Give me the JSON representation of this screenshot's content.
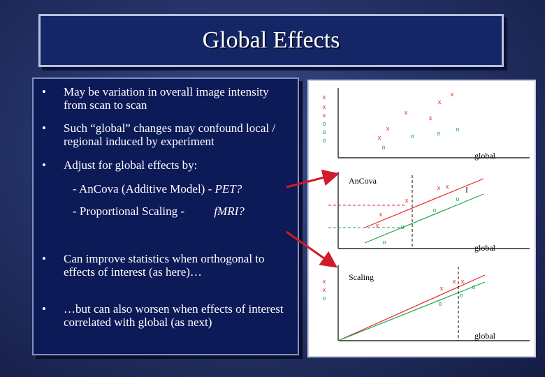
{
  "slide": {
    "title": "Global Effects",
    "bullets": [
      {
        "marker": "•",
        "text": "May be variation in overall image intensity from scan to scan"
      },
      {
        "marker": "•",
        "text": "Such “global” changes may confound local / regional induced by experiment"
      },
      {
        "marker": "•",
        "text": "Adjust for global effects by:"
      }
    ],
    "sub_items": {
      "ancova": {
        "prefix": "- AnCova (Additive Model) - ",
        "emph": "PET?"
      },
      "scaling": {
        "prefix": "- Proportional Scaling - ",
        "emph": "fMRI?"
      }
    },
    "bullets_lower": [
      {
        "marker": "•",
        "text": "Can improve statistics when orthogonal to effects of interest (as here)…"
      },
      {
        "marker": "•",
        "text": "…but can also worsen when effects of interest correlated with global (as next)"
      }
    ]
  },
  "figure": {
    "panel1": {
      "x_label": "global"
    },
    "panel2": {
      "title": "AnCova",
      "x_label": "global"
    },
    "panel3": {
      "title": "Scaling",
      "x_label": "global"
    },
    "colors": {
      "condition_a": "#e8262b",
      "condition_b": "#1ea64a",
      "arrow": "#d11a2a"
    }
  }
}
